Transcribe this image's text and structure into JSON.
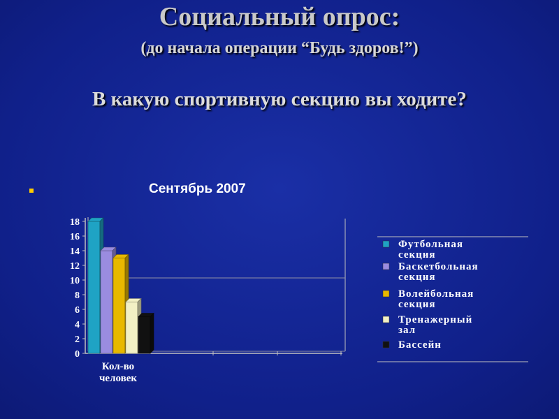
{
  "slide": {
    "title": "Социальный опрос:",
    "subtitle": "(до начала операции “Будь здоров!”)",
    "question": "В какую спортивную секцию вы ходите?"
  },
  "colors": {
    "background": "#10208a",
    "football": "#1fa3c4",
    "basketball": "#9a8ce0",
    "volleyball": "#e8b800",
    "gym": "#f2f0c4",
    "pool": "#111111"
  },
  "chart_data": {
    "type": "bar",
    "title": "Сентябрь 2007",
    "categories": [
      "Кол-во человек"
    ],
    "category_lines": [
      "Кол-во",
      "человек"
    ],
    "series": [
      {
        "name": "Футбольная секция",
        "name_lines": [
          "Футбольная",
          "секция"
        ],
        "values": [
          18
        ],
        "color": "#1fa3c4"
      },
      {
        "name": "Баскетбольная секция",
        "name_lines": [
          "Баскетбольная",
          "секция"
        ],
        "values": [
          14
        ],
        "color": "#9a8ce0"
      },
      {
        "name": "Волейбольная секция",
        "name_lines": [
          "Волейбольная",
          "секция"
        ],
        "values": [
          13
        ],
        "color": "#e8b800"
      },
      {
        "name": "Тренажерный зал",
        "name_lines": [
          "Тренажерный",
          "зал"
        ],
        "values": [
          7
        ],
        "color": "#f2f0c4"
      },
      {
        "name": "Бассейн",
        "name_lines": [
          "Бассейн"
        ],
        "values": [
          5
        ],
        "color": "#111111"
      }
    ],
    "yticks": [
      0,
      2,
      4,
      6,
      8,
      10,
      12,
      14,
      16,
      18
    ],
    "ylim": [
      0,
      18
    ],
    "legend_position": "right",
    "grid": false
  }
}
